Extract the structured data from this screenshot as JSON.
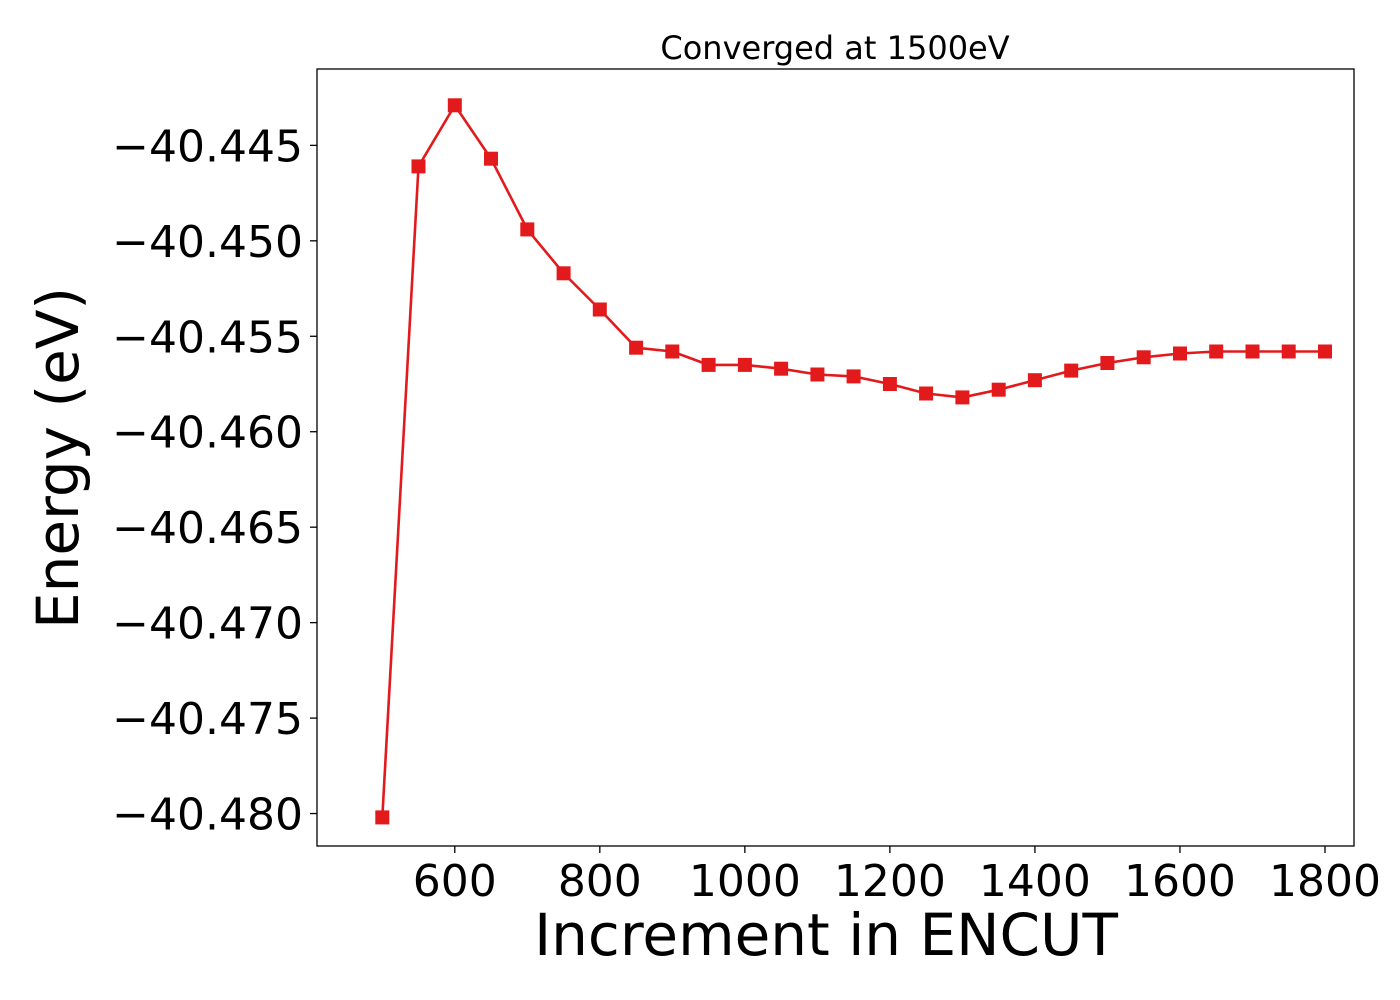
{
  "chart_data": {
    "type": "line",
    "title": "Converged at 1500eV",
    "xlabel": "Increment in ENCUT",
    "ylabel": "Energy (eV)",
    "xlim": [
      410,
      1840
    ],
    "ylim": [
      -40.4817,
      -40.441
    ],
    "xticks": [
      600,
      800,
      1000,
      1200,
      1400,
      1600,
      1800
    ],
    "xtick_labels": [
      "600",
      "800",
      "1000",
      "1200",
      "1400",
      "1600",
      "1800"
    ],
    "yticks": [
      -40.445,
      -40.45,
      -40.455,
      -40.46,
      -40.465,
      -40.47,
      -40.475,
      -40.48
    ],
    "ytick_labels": [
      "−40.445",
      "−40.450",
      "−40.455",
      "−40.460",
      "−40.465",
      "−40.470",
      "−40.475",
      "−40.480"
    ],
    "grid": false,
    "marker": "square",
    "series": [
      {
        "color": "#e31a1c",
        "x": [
          500,
          550,
          600,
          650,
          700,
          750,
          800,
          850,
          900,
          950,
          1000,
          1050,
          1100,
          1150,
          1200,
          1250,
          1300,
          1350,
          1400,
          1450,
          1500,
          1550,
          1600,
          1650,
          1700,
          1750,
          1800
        ],
        "y": [
          -40.4802,
          -40.4461,
          -40.4429,
          -40.4457,
          -40.4494,
          -40.4517,
          -40.4536,
          -40.4556,
          -40.4558,
          -40.4565,
          -40.4565,
          -40.4567,
          -40.457,
          -40.4571,
          -40.4575,
          -40.458,
          -40.4582,
          -40.4578,
          -40.4573,
          -40.4568,
          -40.4564,
          -40.4561,
          -40.4559,
          -40.4558,
          -40.4558,
          -40.4558,
          -40.4558
        ]
      }
    ]
  }
}
